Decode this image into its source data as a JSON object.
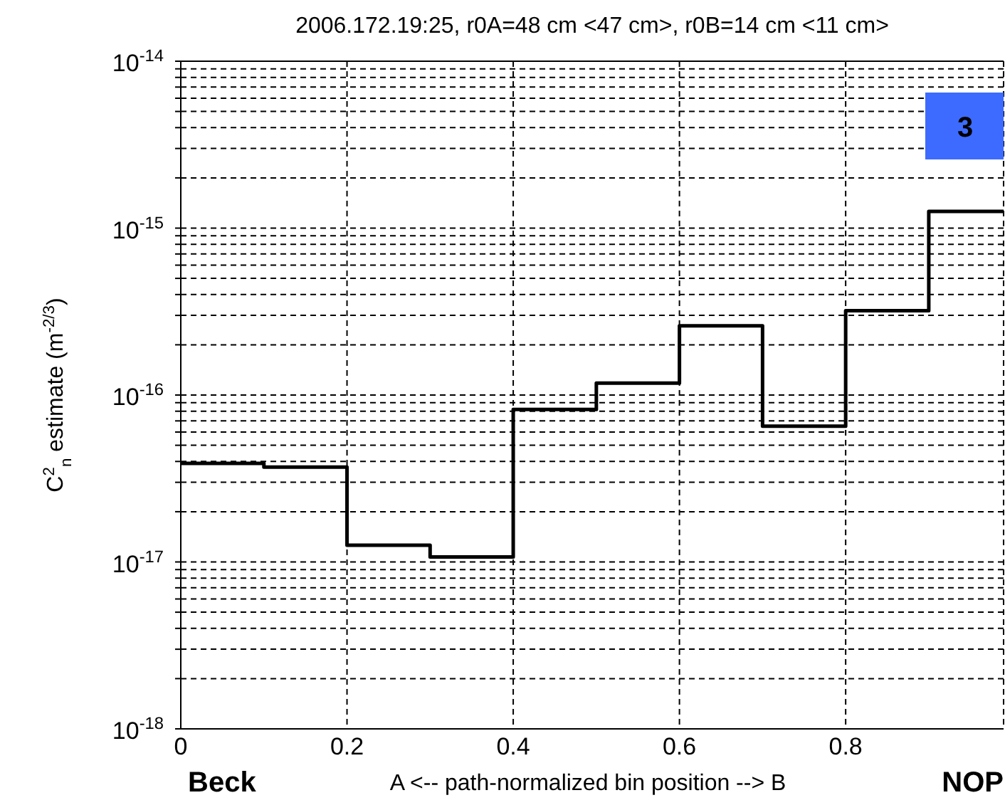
{
  "chart_data": {
    "type": "step",
    "title": "2006.172.19:25, r0A=48 cm <47 cm>, r0B=14 cm <11 cm>",
    "xlabel": "A <-- path-normalized bin position --> B",
    "ylabel": "C$^{2}$$_{n}$ estimate (m$^{-2/3}$)",
    "annotations": [
      "Beck",
      "NOP",
      "3"
    ],
    "x": [
      0,
      0.1,
      0.2,
      0.3,
      0.4,
      0.5,
      0.6,
      0.7,
      0.8,
      0.9,
      0.99
    ],
    "series": [
      {
        "color": "#000000",
        "values": [
          3.9e-17,
          3.7e-17,
          1.26e-17,
          1.07e-17,
          8.2e-17,
          1.18e-16,
          2.6e-16,
          6.5e-17,
          3.2e-16,
          1.26e-15,
          1.26e-15
        ]
      }
    ],
    "xlim": [
      0,
      0.99
    ],
    "xticks": [
      0,
      0.2,
      0.4,
      0.6,
      0.8
    ],
    "ylim": [
      1e-18,
      1e-14
    ],
    "log": true,
    "yticks": [
      {
        "value": 1e-18,
        "label": "10$^{-18}$"
      },
      {
        "value": 2e-18,
        "label": null
      },
      {
        "value": 3e-18,
        "label": null
      },
      {
        "value": 4e-18,
        "label": null
      },
      {
        "value": 5e-18,
        "label": null
      },
      {
        "value": 6e-18,
        "label": null
      },
      {
        "value": 7e-18,
        "label": null
      },
      {
        "value": 8e-18,
        "label": null
      },
      {
        "value": 9e-18,
        "label": null
      },
      {
        "value": 1e-17,
        "label": "10$^{-17}$"
      },
      {
        "value": 2e-17,
        "label": null
      },
      {
        "value": 3e-17,
        "label": null
      },
      {
        "value": 4e-17,
        "label": null
      },
      {
        "value": 5e-17,
        "label": null
      },
      {
        "value": 6e-17,
        "label": null
      },
      {
        "value": 7e-17,
        "label": null
      },
      {
        "value": 8e-17,
        "label": null
      },
      {
        "value": 9e-17,
        "label": null
      },
      {
        "value": 1e-16,
        "label": "10$^{-16}$"
      },
      {
        "value": 2e-16,
        "label": null
      },
      {
        "value": 3e-16,
        "label": null
      },
      {
        "value": 4e-16,
        "label": null
      },
      {
        "value": 5e-16,
        "label": null
      },
      {
        "value": 6e-16,
        "label": null
      },
      {
        "value": 7e-16,
        "label": null
      },
      {
        "value": 8e-16,
        "label": null
      },
      {
        "value": 9e-16,
        "label": null
      },
      {
        "value": 1e-15,
        "label": "10$^{-15}$"
      },
      {
        "value": 2e-15,
        "label": null
      },
      {
        "value": 3e-15,
        "label": null
      },
      {
        "value": 4e-15,
        "label": null
      },
      {
        "value": 5e-15,
        "label": null
      },
      {
        "value": 6e-15,
        "label": null
      },
      {
        "value": 7e-15,
        "label": null
      },
      {
        "value": 8e-15,
        "label": null
      },
      {
        "value": 9e-15,
        "label": null
      },
      {
        "value": 1e-14,
        "label": "10$^{-14}$"
      }
    ],
    "grid": true,
    "line_style": "solid",
    "marker": "none"
  }
}
